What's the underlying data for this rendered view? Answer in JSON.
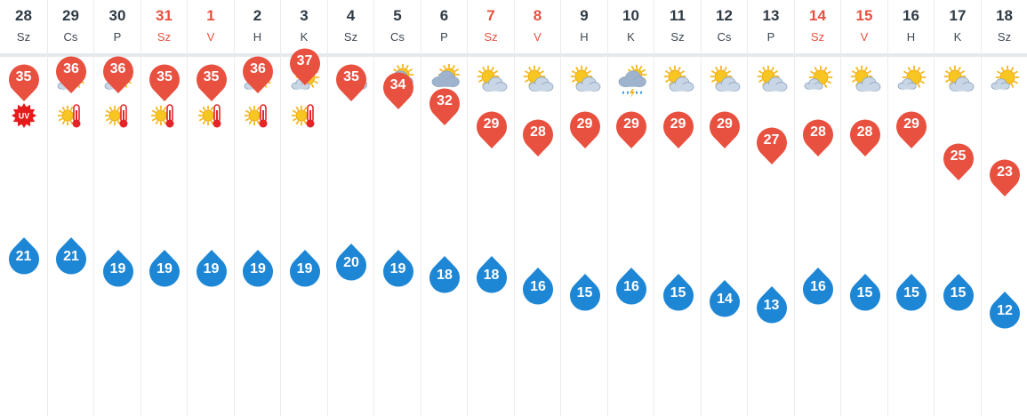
{
  "colors": {
    "high_pin": "#e8503f",
    "low_drop": "#1d86d5",
    "weekend_text": "#e8503f",
    "normal_text": "#2f3a45",
    "grid": "#e9ecef"
  },
  "days": [
    {
      "date": "28",
      "dow": "Sz",
      "weekend": false,
      "icon": "partly-sunny-icon",
      "badge": "uv-icon",
      "high": 35,
      "low": 21
    },
    {
      "date": "29",
      "dow": "Cs",
      "weekend": false,
      "icon": "partly-sunny-icon",
      "badge": "heat-icon",
      "high": 36,
      "low": 21
    },
    {
      "date": "30",
      "dow": "P",
      "weekend": false,
      "icon": "partly-sunny-icon",
      "badge": "heat-icon",
      "high": 36,
      "low": 19
    },
    {
      "date": "31",
      "dow": "Sz",
      "weekend": true,
      "icon": "sun-icon",
      "badge": "heat-icon",
      "high": 35,
      "low": 19
    },
    {
      "date": "1",
      "dow": "V",
      "weekend": true,
      "icon": "partly-sunny-icon",
      "badge": "heat-icon",
      "high": 35,
      "low": 19
    },
    {
      "date": "2",
      "dow": "H",
      "weekend": false,
      "icon": "partly-sunny-icon",
      "badge": "heat-icon",
      "high": 36,
      "low": 19
    },
    {
      "date": "3",
      "dow": "K",
      "weekend": false,
      "icon": "partly-sunny-icon",
      "badge": "heat-icon",
      "high": 37,
      "low": 19
    },
    {
      "date": "4",
      "dow": "Sz",
      "weekend": false,
      "icon": "mostly-cloudy-icon",
      "badge": "",
      "high": 35,
      "low": 20
    },
    {
      "date": "5",
      "dow": "Cs",
      "weekend": false,
      "icon": "sun-rain-icon",
      "badge": "",
      "high": 34,
      "low": 19
    },
    {
      "date": "6",
      "dow": "P",
      "weekend": false,
      "icon": "sun-rain-icon",
      "badge": "",
      "high": 32,
      "low": 18
    },
    {
      "date": "7",
      "dow": "Sz",
      "weekend": true,
      "icon": "partly-cloudy-icon",
      "badge": "",
      "high": 29,
      "low": 18
    },
    {
      "date": "8",
      "dow": "V",
      "weekend": true,
      "icon": "partly-cloudy-icon",
      "badge": "",
      "high": 28,
      "low": 16
    },
    {
      "date": "9",
      "dow": "H",
      "weekend": false,
      "icon": "partly-cloudy-icon",
      "badge": "",
      "high": 29,
      "low": 15
    },
    {
      "date": "10",
      "dow": "K",
      "weekend": false,
      "icon": "thunder-rain-icon",
      "badge": "",
      "high": 29,
      "low": 16
    },
    {
      "date": "11",
      "dow": "Sz",
      "weekend": false,
      "icon": "partly-cloudy-icon",
      "badge": "",
      "high": 29,
      "low": 15
    },
    {
      "date": "12",
      "dow": "Cs",
      "weekend": false,
      "icon": "partly-cloudy-icon",
      "badge": "",
      "high": 29,
      "low": 14
    },
    {
      "date": "13",
      "dow": "P",
      "weekend": false,
      "icon": "partly-cloudy-icon",
      "badge": "",
      "high": 27,
      "low": 13
    },
    {
      "date": "14",
      "dow": "Sz",
      "weekend": true,
      "icon": "partly-sunny-icon",
      "badge": "",
      "high": 28,
      "low": 16
    },
    {
      "date": "15",
      "dow": "V",
      "weekend": true,
      "icon": "partly-cloudy-icon",
      "badge": "",
      "high": 28,
      "low": 15
    },
    {
      "date": "16",
      "dow": "H",
      "weekend": false,
      "icon": "partly-sunny-icon",
      "badge": "",
      "high": 29,
      "low": 15
    },
    {
      "date": "17",
      "dow": "K",
      "weekend": false,
      "icon": "partly-cloudy-icon",
      "badge": "",
      "high": 25,
      "low": 15
    },
    {
      "date": "18",
      "dow": "Sz",
      "weekend": false,
      "icon": "partly-sunny-icon",
      "badge": "",
      "high": 23,
      "low": 12
    }
  ]
}
